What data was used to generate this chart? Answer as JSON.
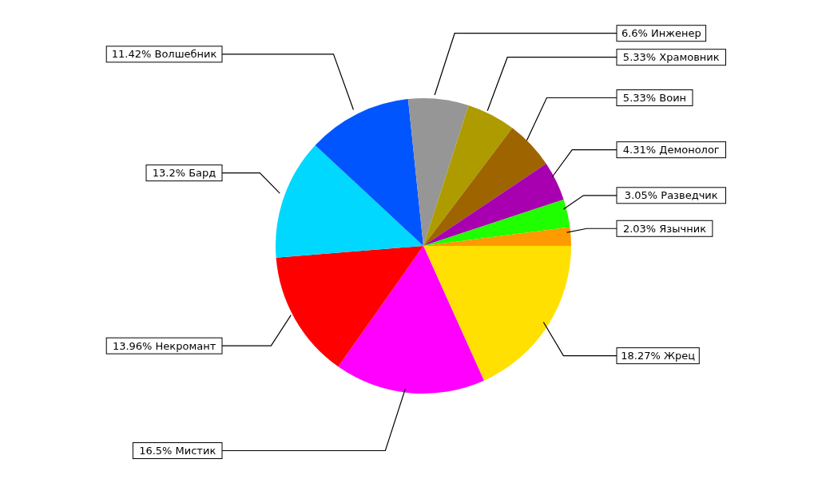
{
  "chart_data": {
    "type": "pie",
    "categories": [
      "Жрец",
      "Мистик",
      "Некромант",
      "Бард",
      "Волшебник",
      "Инженер",
      "Храмовник",
      "Воин",
      "Демонолог",
      "Разведчик",
      "Язычник"
    ],
    "values": [
      18.27,
      16.5,
      13.96,
      13.2,
      11.42,
      6.6,
      5.33,
      5.33,
      4.31,
      3.05,
      2.03
    ],
    "colors": [
      "#ffe000",
      "#ff00ff",
      "#ff0000",
      "#00d8ff",
      "#0055ff",
      "#969696",
      "#ae9b00",
      "#9e6400",
      "#a800b0",
      "#20ff00",
      "#ff9a00"
    ],
    "value_labels": [
      "18.27%",
      "16.5%",
      "13.96%",
      "13.2%",
      "11.42%",
      "6.6%",
      "5.33%",
      "5.33%",
      "4.31%",
      "3.05%",
      "2.03%"
    ]
  }
}
